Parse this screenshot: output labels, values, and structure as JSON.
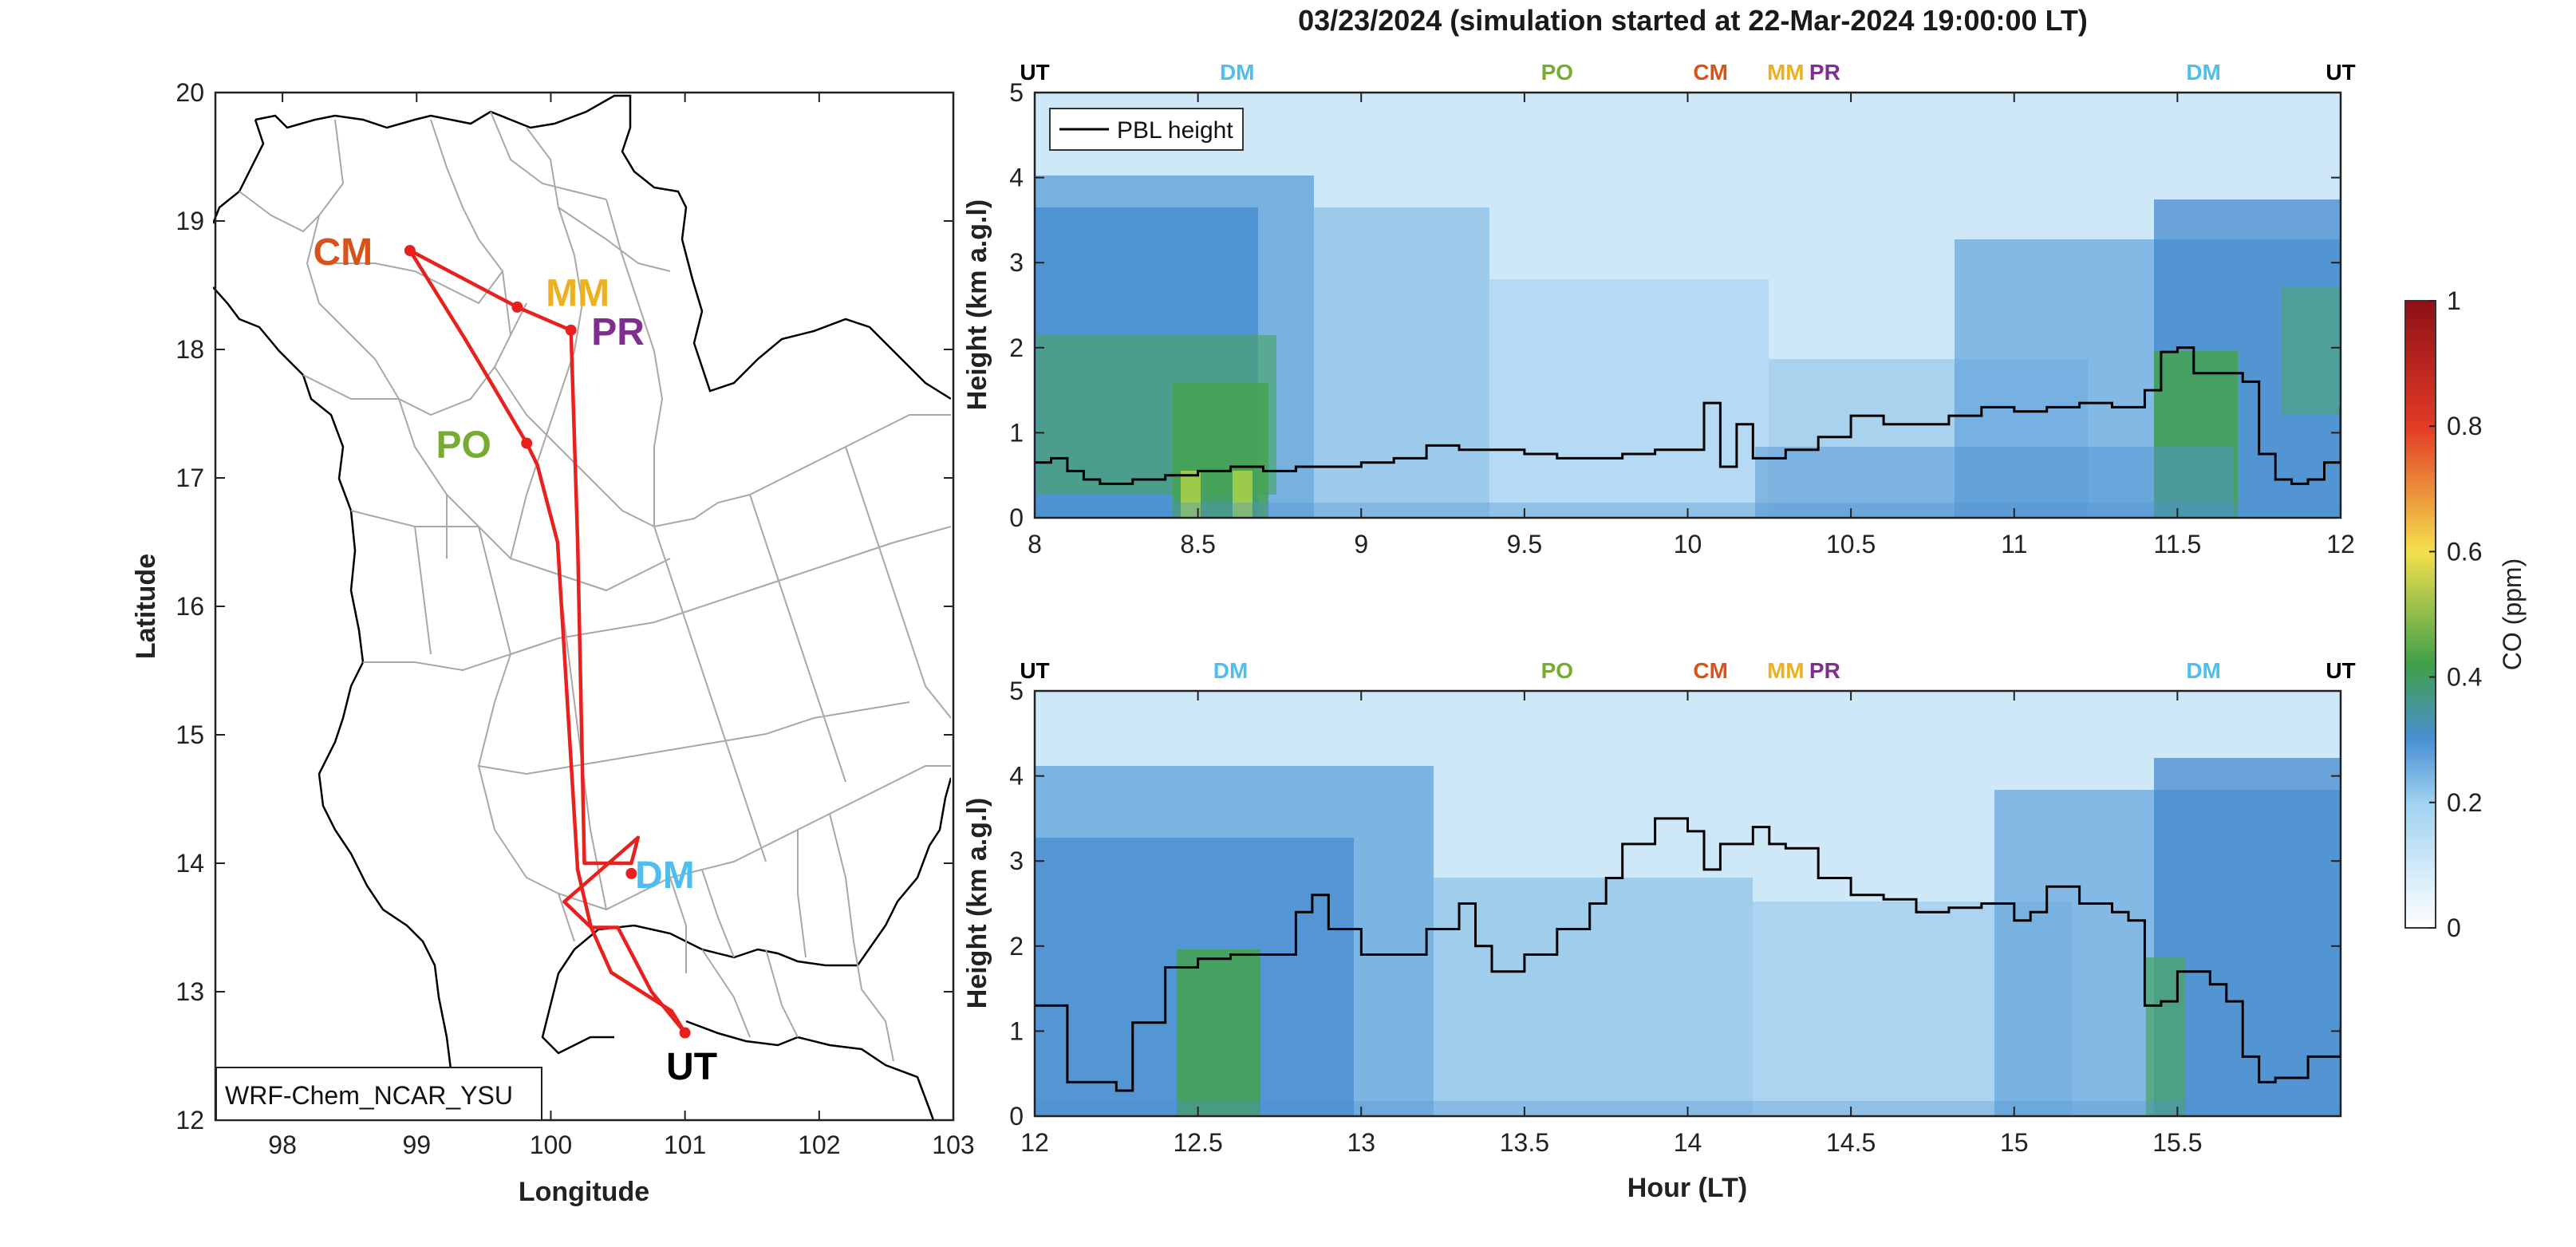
{
  "title": "03/23/2024 (simulation started at 22-Mar-2024 19:00:00 LT)",
  "chart_data": [
    {
      "type": "map",
      "xlabel": "Longitude",
      "ylabel": "Latitude",
      "xlim": [
        97.5,
        103
      ],
      "ylim": [
        12,
        20
      ],
      "xticks": [
        98,
        99,
        100,
        101,
        102,
        103
      ],
      "yticks": [
        12,
        13,
        14,
        15,
        16,
        17,
        18,
        19,
        20
      ],
      "model_label": "WRF-Chem_NCAR_YSU",
      "stations": [
        {
          "code": "CM",
          "lon": 98.95,
          "lat": 18.77,
          "color": "#d95319",
          "label_lon": 98.45,
          "label_lat": 18.77
        },
        {
          "code": "MM",
          "lon": 99.75,
          "lat": 18.33,
          "color": "#edb120",
          "label_lon": 100.2,
          "label_lat": 18.45
        },
        {
          "code": "PR",
          "lon": 100.15,
          "lat": 18.15,
          "color": "#7e2f8e",
          "label_lon": 100.5,
          "label_lat": 18.15
        },
        {
          "code": "PO",
          "lon": 99.82,
          "lat": 17.27,
          "color": "#77ac30",
          "label_lon": 99.35,
          "label_lat": 17.27
        },
        {
          "code": "DM",
          "lon": 100.6,
          "lat": 13.92,
          "color": "#4dbeee",
          "label_lon": 100.85,
          "label_lat": 13.92
        },
        {
          "code": "UT",
          "lon": 101.0,
          "lat": 12.68,
          "color": "#000000",
          "label_lon": 101.05,
          "label_lat": 12.43
        }
      ],
      "flight_track": [
        [
          101.0,
          12.68
        ],
        [
          100.9,
          12.85
        ],
        [
          100.45,
          13.15
        ],
        [
          100.3,
          13.5
        ],
        [
          100.2,
          13.95
        ],
        [
          100.05,
          16.5
        ],
        [
          99.9,
          17.1
        ],
        [
          99.82,
          17.27
        ],
        [
          99.55,
          17.75
        ],
        [
          99.35,
          18.1
        ],
        [
          98.95,
          18.77
        ],
        [
          99.75,
          18.33
        ],
        [
          100.15,
          18.15
        ],
        [
          100.2,
          16.5
        ],
        [
          100.25,
          14.0
        ],
        [
          100.6,
          14.0
        ],
        [
          100.65,
          14.2
        ],
        [
          100.1,
          13.7
        ],
        [
          100.3,
          13.5
        ],
        [
          100.5,
          13.5
        ],
        [
          100.65,
          13.2
        ],
        [
          100.75,
          13.0
        ],
        [
          101.0,
          12.68
        ]
      ]
    },
    {
      "type": "heatmap",
      "ylabel": "Height (km a.g.l)",
      "xlim": [
        8,
        12
      ],
      "ylim": [
        0,
        5
      ],
      "xticks": [
        8,
        8.5,
        9,
        9.5,
        10,
        10.5,
        11,
        11.5,
        12
      ],
      "xtick_labels": [
        "8",
        "8.5",
        "9",
        "9.5",
        "10",
        "10.5",
        "11",
        "11.5",
        "12"
      ],
      "yticks": [
        0,
        1,
        2,
        3,
        4,
        5
      ],
      "legend": "PBL height",
      "legend_position": "top-left",
      "station_marks": [
        {
          "code": "UT",
          "x": 8.0
        },
        {
          "code": "DM",
          "x": 8.62
        },
        {
          "code": "PO",
          "x": 9.6
        },
        {
          "code": "CM",
          "x": 10.07
        },
        {
          "code": "MM",
          "x": 10.3
        },
        {
          "code": "PR",
          "x": 10.42
        },
        {
          "code": "DM",
          "x": 11.58
        },
        {
          "code": "UT",
          "x": 12.0
        }
      ],
      "pbl_height": [
        [
          8.0,
          0.65
        ],
        [
          8.05,
          0.7
        ],
        [
          8.1,
          0.55
        ],
        [
          8.15,
          0.45
        ],
        [
          8.2,
          0.4
        ],
        [
          8.3,
          0.45
        ],
        [
          8.4,
          0.5
        ],
        [
          8.5,
          0.55
        ],
        [
          8.6,
          0.6
        ],
        [
          8.7,
          0.55
        ],
        [
          8.8,
          0.6
        ],
        [
          8.9,
          0.6
        ],
        [
          9.0,
          0.65
        ],
        [
          9.1,
          0.7
        ],
        [
          9.2,
          0.85
        ],
        [
          9.3,
          0.8
        ],
        [
          9.4,
          0.8
        ],
        [
          9.5,
          0.75
        ],
        [
          9.6,
          0.7
        ],
        [
          9.7,
          0.7
        ],
        [
          9.8,
          0.75
        ],
        [
          9.9,
          0.8
        ],
        [
          10.0,
          0.8
        ],
        [
          10.05,
          1.35
        ],
        [
          10.1,
          0.6
        ],
        [
          10.15,
          1.1
        ],
        [
          10.2,
          0.7
        ],
        [
          10.3,
          0.8
        ],
        [
          10.4,
          0.95
        ],
        [
          10.5,
          1.2
        ],
        [
          10.6,
          1.1
        ],
        [
          10.7,
          1.1
        ],
        [
          10.8,
          1.2
        ],
        [
          10.9,
          1.3
        ],
        [
          11.0,
          1.25
        ],
        [
          11.1,
          1.3
        ],
        [
          11.2,
          1.35
        ],
        [
          11.3,
          1.3
        ],
        [
          11.4,
          1.5
        ],
        [
          11.45,
          1.95
        ],
        [
          11.5,
          2.0
        ],
        [
          11.55,
          1.7
        ],
        [
          11.6,
          1.7
        ],
        [
          11.65,
          1.7
        ],
        [
          11.7,
          1.6
        ],
        [
          11.75,
          0.75
        ],
        [
          11.8,
          0.45
        ],
        [
          11.85,
          0.4
        ],
        [
          11.9,
          0.45
        ],
        [
          11.95,
          0.65
        ],
        [
          12.0,
          1.3
        ]
      ]
    },
    {
      "type": "heatmap",
      "xlabel": "Hour (LT)",
      "ylabel": "Height (km a.g.l)",
      "xlim": [
        12,
        16
      ],
      "ylim": [
        0,
        5
      ],
      "xticks": [
        12,
        12.5,
        13,
        13.5,
        14,
        14.5,
        15,
        15.5
      ],
      "xtick_labels": [
        "12",
        "12.5",
        "13",
        "13.5",
        "14",
        "14.5",
        "15",
        "15.5"
      ],
      "yticks": [
        0,
        1,
        2,
        3,
        4,
        5
      ],
      "station_marks": [
        {
          "code": "UT",
          "x": 12.0
        },
        {
          "code": "DM",
          "x": 12.6
        },
        {
          "code": "PO",
          "x": 13.6
        },
        {
          "code": "CM",
          "x": 14.07
        },
        {
          "code": "MM",
          "x": 14.3
        },
        {
          "code": "PR",
          "x": 14.42
        },
        {
          "code": "DM",
          "x": 15.58
        },
        {
          "code": "UT",
          "x": 16.0
        }
      ],
      "pbl_height": [
        [
          12.0,
          1.3
        ],
        [
          12.05,
          1.3
        ],
        [
          12.1,
          0.4
        ],
        [
          12.2,
          0.4
        ],
        [
          12.25,
          0.3
        ],
        [
          12.3,
          1.1
        ],
        [
          12.4,
          1.75
        ],
        [
          12.5,
          1.85
        ],
        [
          12.6,
          1.9
        ],
        [
          12.7,
          1.9
        ],
        [
          12.8,
          2.4
        ],
        [
          12.85,
          2.6
        ],
        [
          12.9,
          2.2
        ],
        [
          13.0,
          1.9
        ],
        [
          13.1,
          1.9
        ],
        [
          13.2,
          2.2
        ],
        [
          13.3,
          2.5
        ],
        [
          13.35,
          2.0
        ],
        [
          13.4,
          1.7
        ],
        [
          13.5,
          1.9
        ],
        [
          13.6,
          2.2
        ],
        [
          13.7,
          2.5
        ],
        [
          13.75,
          2.8
        ],
        [
          13.8,
          3.2
        ],
        [
          13.9,
          3.5
        ],
        [
          14.0,
          3.35
        ],
        [
          14.05,
          2.9
        ],
        [
          14.1,
          3.2
        ],
        [
          14.2,
          3.4
        ],
        [
          14.25,
          3.2
        ],
        [
          14.3,
          3.15
        ],
        [
          14.4,
          2.8
        ],
        [
          14.5,
          2.6
        ],
        [
          14.6,
          2.55
        ],
        [
          14.7,
          2.4
        ],
        [
          14.8,
          2.45
        ],
        [
          14.9,
          2.5
        ],
        [
          15.0,
          2.3
        ],
        [
          15.05,
          2.4
        ],
        [
          15.1,
          2.7
        ],
        [
          15.2,
          2.5
        ],
        [
          15.3,
          2.4
        ],
        [
          15.35,
          2.3
        ],
        [
          15.4,
          1.3
        ],
        [
          15.45,
          1.35
        ],
        [
          15.5,
          1.7
        ],
        [
          15.6,
          1.55
        ],
        [
          15.65,
          1.35
        ],
        [
          15.7,
          0.7
        ],
        [
          15.75,
          0.4
        ],
        [
          15.8,
          0.45
        ],
        [
          15.9,
          0.7
        ],
        [
          16.0,
          1.05
        ]
      ]
    }
  ],
  "colorbar": {
    "label": "CO (ppm)",
    "range": [
      0,
      1
    ],
    "ticks": [
      "0",
      "0.2",
      "0.4",
      "0.6",
      "0.8",
      "1"
    ],
    "stops": [
      "#ffffff",
      "#5da9df",
      "#3f9f49",
      "#f9e14a",
      "#e23a26",
      "#8d1016"
    ]
  },
  "station_colors": {
    "UT": "#000000",
    "DM": "#4dbeee",
    "PO": "#77ac30",
    "CM": "#d95319",
    "MM": "#edb120",
    "PR": "#7e2f8e"
  }
}
